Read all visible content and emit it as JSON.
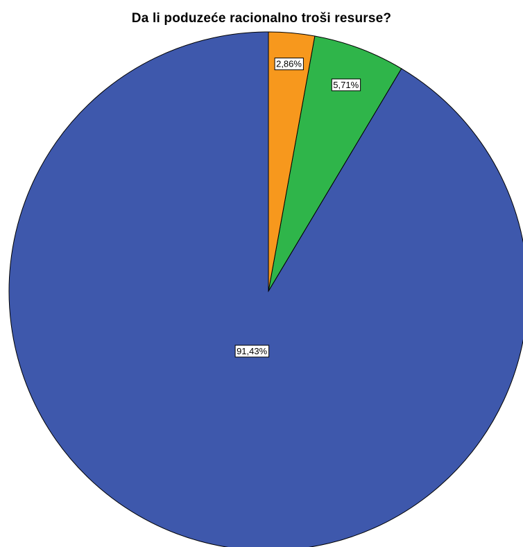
{
  "chart_data": {
    "type": "pie",
    "title": "Da li poduzeće racionalno troši resurse?",
    "slices": [
      {
        "value": 91.43,
        "label": "91,43%",
        "color": "#3e58ac"
      },
      {
        "value": 5.71,
        "label": "5,71%",
        "color": "#2fb54a"
      },
      {
        "value": 2.86,
        "label": "2,86%",
        "color": "#f7981d"
      }
    ]
  }
}
